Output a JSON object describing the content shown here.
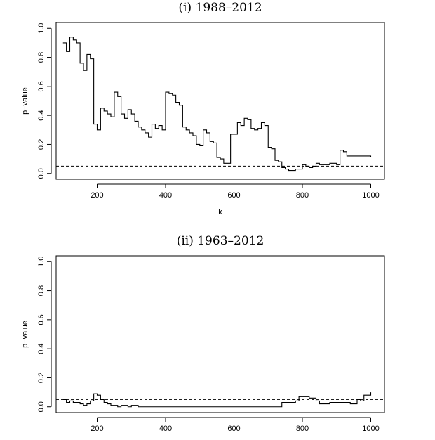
{
  "chart_data": [
    {
      "type": "line",
      "title": "(i) 1988–2012",
      "xlabel": "k",
      "ylabel": "p−value",
      "xlim": [
        80,
        1040
      ],
      "ylim": [
        -0.04,
        1.04
      ],
      "xticks": [
        200,
        400,
        600,
        800,
        1000
      ],
      "yticks": [
        0.0,
        0.2,
        0.4,
        0.6,
        0.8,
        1.0
      ],
      "xtick_labels": [
        "200",
        "400",
        "600",
        "800",
        "1000"
      ],
      "ytick_labels": [
        "0.0",
        "0.2",
        "0.4",
        "0.6",
        "0.8",
        "1.0"
      ],
      "reference_line": 0.05,
      "step": true,
      "x": [
        100,
        110,
        120,
        130,
        140,
        150,
        160,
        170,
        180,
        190,
        200,
        210,
        220,
        230,
        240,
        250,
        260,
        270,
        280,
        290,
        300,
        310,
        320,
        330,
        340,
        350,
        360,
        370,
        380,
        390,
        400,
        410,
        420,
        430,
        440,
        450,
        460,
        470,
        480,
        490,
        500,
        510,
        520,
        530,
        540,
        550,
        560,
        570,
        580,
        590,
        600,
        610,
        620,
        630,
        640,
        650,
        660,
        670,
        680,
        690,
        700,
        710,
        720,
        730,
        740,
        750,
        760,
        770,
        780,
        790,
        800,
        810,
        820,
        830,
        840,
        850,
        860,
        870,
        880,
        890,
        900,
        910,
        920,
        930,
        940,
        950,
        960,
        970,
        980,
        990,
        1000
      ],
      "y": [
        0.9,
        0.84,
        0.94,
        0.92,
        0.9,
        0.76,
        0.71,
        0.82,
        0.79,
        0.34,
        0.3,
        0.45,
        0.43,
        0.41,
        0.39,
        0.56,
        0.53,
        0.41,
        0.38,
        0.44,
        0.41,
        0.36,
        0.32,
        0.3,
        0.28,
        0.25,
        0.34,
        0.31,
        0.33,
        0.3,
        0.56,
        0.55,
        0.54,
        0.49,
        0.47,
        0.32,
        0.3,
        0.28,
        0.26,
        0.2,
        0.19,
        0.3,
        0.28,
        0.22,
        0.21,
        0.11,
        0.1,
        0.07,
        0.07,
        0.27,
        0.27,
        0.35,
        0.33,
        0.38,
        0.37,
        0.31,
        0.3,
        0.31,
        0.35,
        0.33,
        0.18,
        0.17,
        0.09,
        0.08,
        0.04,
        0.03,
        0.02,
        0.02,
        0.03,
        0.03,
        0.06,
        0.05,
        0.04,
        0.05,
        0.07,
        0.06,
        0.06,
        0.06,
        0.07,
        0.07,
        0.06,
        0.16,
        0.15,
        0.12,
        0.12,
        0.12,
        0.12,
        0.12,
        0.12,
        0.12,
        0.11
      ]
    },
    {
      "type": "line",
      "title": "(ii) 1963–2012",
      "xlabel": "",
      "ylabel": "p−value",
      "xlim": [
        80,
        1040
      ],
      "ylim": [
        -0.04,
        1.04
      ],
      "xticks": [
        200,
        400,
        600,
        800,
        1000
      ],
      "yticks": [
        0.0,
        0.2,
        0.4,
        0.6,
        0.8,
        1.0
      ],
      "xtick_labels": [
        "200",
        "400",
        "600",
        "800",
        "1000"
      ],
      "ytick_labels": [
        "0.0",
        "0.2",
        "0.4",
        "0.6",
        "0.8",
        "1.0"
      ],
      "reference_line": 0.05,
      "step": true,
      "x": [
        100,
        110,
        120,
        130,
        140,
        150,
        160,
        170,
        180,
        190,
        200,
        210,
        220,
        230,
        240,
        250,
        260,
        270,
        280,
        290,
        300,
        320,
        340,
        360,
        380,
        400,
        450,
        500,
        550,
        600,
        650,
        700,
        720,
        740,
        760,
        780,
        790,
        800,
        820,
        840,
        850,
        860,
        880,
        900,
        920,
        940,
        960,
        970,
        980,
        990,
        1000
      ],
      "y": [
        0.05,
        0.03,
        0.04,
        0.03,
        0.03,
        0.02,
        0.01,
        0.02,
        0.04,
        0.09,
        0.08,
        0.05,
        0.03,
        0.02,
        0.01,
        0.01,
        0.0,
        0.01,
        0.01,
        0.0,
        0.01,
        0.0,
        0.0,
        0.0,
        0.0,
        0.0,
        0.0,
        0.0,
        0.0,
        0.0,
        0.0,
        0.0,
        0.0,
        0.03,
        0.03,
        0.04,
        0.07,
        0.07,
        0.06,
        0.04,
        0.02,
        0.02,
        0.03,
        0.03,
        0.03,
        0.02,
        0.05,
        0.04,
        0.08,
        0.08,
        0.1
      ]
    }
  ]
}
